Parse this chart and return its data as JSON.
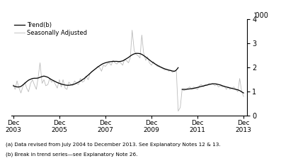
{
  "ylabel_right": "'000",
  "legend_entries": [
    "Trend(b)",
    "Seasonally Adjusted"
  ],
  "trend_color": "#000000",
  "seasonal_color": "#bbbbbb",
  "footnote1": "(a) Data revised from July 2004 to December 2013. See Explanatory Notes 12 & 13.",
  "footnote2": "(b) Break in trend series—see Explanatory Note 26.",
  "xlim_start": 2003.83,
  "xlim_end": 2014.08,
  "ylim": [
    0,
    4
  ],
  "yticks": [
    0,
    1,
    2,
    3,
    4
  ],
  "xtick_years": [
    2003,
    2005,
    2007,
    2009,
    2011,
    2013
  ],
  "trend_x": [
    2003.92,
    2004.0,
    2004.08,
    2004.17,
    2004.25,
    2004.33,
    2004.42,
    2004.5,
    2004.58,
    2004.67,
    2004.75,
    2004.83,
    2004.92,
    2005.0,
    2005.08,
    2005.17,
    2005.25,
    2005.33,
    2005.42,
    2005.5,
    2005.58,
    2005.67,
    2005.75,
    2005.83,
    2005.92,
    2006.0,
    2006.08,
    2006.17,
    2006.25,
    2006.33,
    2006.42,
    2006.5,
    2006.58,
    2006.67,
    2006.75,
    2006.83,
    2006.92,
    2007.0,
    2007.08,
    2007.17,
    2007.25,
    2007.33,
    2007.42,
    2007.5,
    2007.58,
    2007.67,
    2007.75,
    2007.83,
    2007.92,
    2008.0,
    2008.08,
    2008.17,
    2008.25,
    2008.33,
    2008.42,
    2008.5,
    2008.58,
    2008.67,
    2008.75,
    2008.83,
    2008.92,
    2009.0,
    2009.08,
    2009.17,
    2009.25,
    2009.33,
    2009.42,
    2009.5,
    2009.58,
    2009.67,
    2009.75,
    2009.83,
    2009.92,
    2010.0,
    2010.08,
    2010.17,
    2010.25,
    2010.33,
    2010.42,
    2010.5,
    2010.58,
    2010.67,
    2010.75,
    2010.83,
    2010.92,
    2011.0,
    2011.08,
    null,
    2011.25,
    2011.33,
    2011.42,
    2011.5,
    2011.58,
    2011.67,
    2011.75,
    2011.83,
    2011.92,
    2012.0,
    2012.08,
    2012.17,
    2012.25,
    2012.33,
    2012.42,
    2012.5,
    2012.58,
    2012.67,
    2012.75,
    2012.83,
    2012.92,
    2013.0,
    2013.08,
    2013.17,
    2013.25,
    2013.33,
    2013.42,
    2013.5,
    2013.58,
    2013.67,
    2013.75,
    2013.83,
    2013.92
  ],
  "trend_y": [
    1.25,
    1.22,
    1.2,
    1.2,
    1.22,
    1.28,
    1.35,
    1.42,
    1.48,
    1.52,
    1.55,
    1.56,
    1.56,
    1.57,
    1.6,
    1.63,
    1.65,
    1.63,
    1.6,
    1.55,
    1.5,
    1.46,
    1.42,
    1.38,
    1.35,
    1.32,
    1.3,
    1.28,
    1.27,
    1.27,
    1.28,
    1.3,
    1.32,
    1.36,
    1.4,
    1.44,
    1.5,
    1.55,
    1.62,
    1.69,
    1.76,
    1.83,
    1.9,
    1.96,
    2.02,
    2.08,
    2.13,
    2.17,
    2.2,
    2.22,
    2.24,
    2.25,
    2.26,
    2.26,
    2.26,
    2.25,
    2.26,
    2.28,
    2.32,
    2.37,
    2.42,
    2.48,
    2.53,
    2.57,
    2.59,
    2.59,
    2.58,
    2.55,
    2.5,
    2.44,
    2.38,
    2.32,
    2.25,
    2.2,
    2.15,
    2.1,
    2.05,
    2.02,
    1.98,
    1.95,
    1.92,
    1.9,
    1.88,
    1.86,
    1.85,
    1.9,
    2.0,
    null,
    1.1,
    1.1,
    1.1,
    1.11,
    1.12,
    1.13,
    1.14,
    1.16,
    1.18,
    1.2,
    1.22,
    1.24,
    1.26,
    1.28,
    1.3,
    1.32,
    1.33,
    1.33,
    1.32,
    1.3,
    1.28,
    1.25,
    1.22,
    1.2,
    1.18,
    1.16,
    1.14,
    1.12,
    1.1,
    1.08,
    1.05,
    1.0,
    0.95
  ],
  "seasonal_x": [
    2003.92,
    2004.0,
    2004.08,
    2004.17,
    2004.25,
    2004.33,
    2004.42,
    2004.5,
    2004.58,
    2004.67,
    2004.75,
    2004.83,
    2004.92,
    2005.0,
    2005.08,
    2005.17,
    2005.25,
    2005.33,
    2005.42,
    2005.5,
    2005.58,
    2005.67,
    2005.75,
    2005.83,
    2005.92,
    2006.0,
    2006.08,
    2006.17,
    2006.25,
    2006.33,
    2006.42,
    2006.5,
    2006.58,
    2006.67,
    2006.75,
    2006.83,
    2006.92,
    2007.0,
    2007.08,
    2007.17,
    2007.25,
    2007.33,
    2007.42,
    2007.5,
    2007.58,
    2007.67,
    2007.75,
    2007.83,
    2007.92,
    2008.0,
    2008.08,
    2008.17,
    2008.25,
    2008.33,
    2008.42,
    2008.5,
    2008.58,
    2008.67,
    2008.75,
    2008.83,
    2008.92,
    2009.0,
    2009.08,
    2009.17,
    2009.25,
    2009.33,
    2009.42,
    2009.5,
    2009.58,
    2009.67,
    2009.75,
    2009.83,
    2009.92,
    2010.0,
    2010.08,
    2010.17,
    2010.25,
    2010.33,
    2010.42,
    2010.5,
    2010.58,
    2010.67,
    2010.75,
    2010.83,
    2010.92,
    2011.0,
    2011.08,
    2011.17,
    2011.25,
    2011.33,
    2011.42,
    2011.5,
    2011.58,
    2011.67,
    2011.75,
    2011.83,
    2011.92,
    2012.0,
    2012.08,
    2012.17,
    2012.25,
    2012.33,
    2012.42,
    2012.5,
    2012.58,
    2012.67,
    2012.75,
    2012.83,
    2012.92,
    2013.0,
    2013.08,
    2013.17,
    2013.25,
    2013.33,
    2013.42,
    2013.5,
    2013.58,
    2013.67,
    2013.75,
    2013.83,
    2013.92
  ],
  "seasonal_y": [
    1.3,
    1.1,
    1.45,
    1.15,
    0.95,
    1.2,
    1.4,
    1.15,
    1.0,
    1.35,
    1.5,
    1.3,
    1.1,
    1.6,
    2.2,
    1.35,
    1.5,
    1.25,
    1.3,
    1.55,
    1.4,
    1.45,
    1.3,
    1.15,
    1.5,
    1.2,
    1.5,
    1.15,
    1.1,
    1.4,
    1.3,
    1.25,
    1.45,
    1.35,
    1.3,
    1.55,
    1.4,
    1.45,
    1.65,
    1.5,
    1.75,
    1.85,
    1.9,
    1.95,
    2.05,
    2.0,
    1.85,
    2.1,
    2.05,
    2.15,
    2.2,
    2.1,
    2.3,
    2.2,
    2.15,
    2.25,
    2.2,
    2.1,
    2.35,
    2.3,
    2.2,
    2.4,
    3.55,
    2.7,
    2.55,
    2.5,
    2.4,
    3.35,
    2.6,
    2.3,
    2.45,
    2.2,
    2.1,
    2.25,
    2.15,
    2.05,
    2.1,
    2.0,
    1.95,
    1.9,
    1.95,
    1.85,
    1.9,
    1.8,
    1.85,
    1.85,
    0.2,
    0.35,
    1.1,
    1.05,
    1.1,
    1.15,
    1.2,
    1.1,
    1.2,
    1.15,
    1.1,
    1.25,
    1.3,
    1.2,
    1.3,
    1.25,
    1.35,
    1.3,
    1.35,
    1.25,
    1.3,
    1.2,
    1.25,
    1.2,
    1.25,
    1.1,
    1.2,
    1.1,
    1.15,
    1.2,
    1.1,
    1.0,
    1.55,
    1.05,
    0.8
  ]
}
